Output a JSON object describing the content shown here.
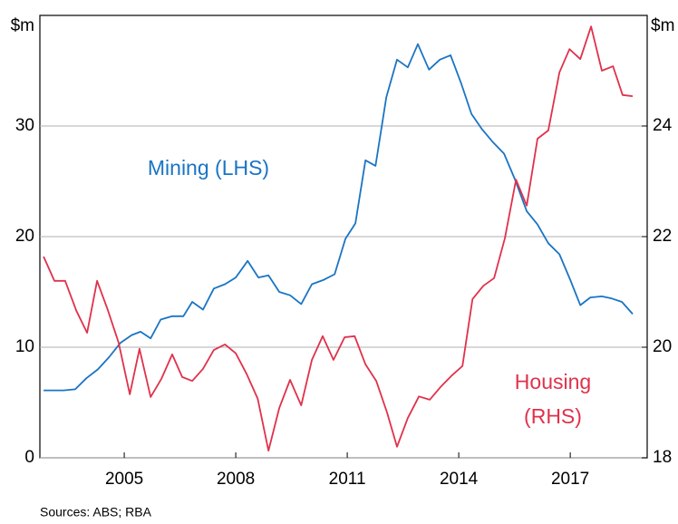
{
  "chart_data": {
    "type": "line",
    "y_label": "$m",
    "y2_label": "$m",
    "source": "Sources: ABS; RBA",
    "xlim": [
      2002.73,
      2019.07
    ],
    "xticks": [
      2005,
      2008,
      2011,
      2014,
      2017
    ],
    "ylim": [
      0,
      40
    ],
    "yticks": [
      0,
      10,
      20,
      30
    ],
    "y2lim": [
      18,
      26
    ],
    "y2ticks": [
      18,
      20,
      22,
      24
    ],
    "grid": true,
    "series": [
      {
        "name": "Mining (LHS)",
        "color": "#1a74c4",
        "axis": "y",
        "x": [
          2002.83,
          2003.37,
          2003.68,
          2003.98,
          2004.29,
          2004.59,
          2004.9,
          2005.2,
          2005.44,
          2005.71,
          2005.98,
          2006.29,
          2006.59,
          2006.83,
          2007.12,
          2007.41,
          2007.71,
          2008,
          2008.32,
          2008.61,
          2008.88,
          2009.17,
          2009.46,
          2009.76,
          2010.05,
          2010.37,
          2010.66,
          2010.95,
          2011.22,
          2011.49,
          2011.76,
          2012.05,
          2012.34,
          2012.63,
          2012.9,
          2013.2,
          2013.49,
          2013.78,
          2014.07,
          2014.34,
          2014.63,
          2014.93,
          2015.22,
          2015.51,
          2015.83,
          2016.12,
          2016.41,
          2016.71,
          2017,
          2017.27,
          2017.54,
          2017.85,
          2018.12,
          2018.39,
          2018.68
        ],
        "values": [
          6.1,
          6.1,
          6.2,
          7.2,
          8.0,
          9.1,
          10.4,
          11.1,
          11.4,
          10.8,
          12.5,
          12.8,
          12.8,
          14.1,
          13.4,
          15.3,
          15.7,
          16.3,
          17.8,
          16.3,
          16.5,
          15.0,
          14.7,
          13.9,
          15.7,
          16.1,
          16.6,
          19.8,
          21.2,
          26.9,
          26.4,
          32.6,
          36.0,
          35.3,
          37.4,
          35.1,
          36.0,
          36.4,
          33.8,
          31.1,
          29.7,
          28.5,
          27.5,
          25.2,
          22.3,
          21.1,
          19.4,
          18.4,
          16.1,
          13.8,
          14.5,
          14.6,
          14.4,
          14.1,
          13.0
        ]
      },
      {
        "name": "Housing (RHS)",
        "lines": [
          "Housing",
          "(RHS)"
        ],
        "color": "#e0314b",
        "axis": "y2",
        "x": [
          2002.83,
          2003.12,
          2003.41,
          2003.71,
          2004,
          2004.27,
          2004.56,
          2004.85,
          2005.15,
          2005.41,
          2005.71,
          2006,
          2006.29,
          2006.56,
          2006.83,
          2007.12,
          2007.41,
          2007.71,
          2008,
          2008.29,
          2008.59,
          2008.88,
          2009.17,
          2009.46,
          2009.76,
          2010.05,
          2010.34,
          2010.63,
          2010.93,
          2011.2,
          2011.49,
          2011.78,
          2012.07,
          2012.34,
          2012.63,
          2012.93,
          2013.22,
          2013.51,
          2013.8,
          2014.1,
          2014.37,
          2014.66,
          2014.95,
          2015.24,
          2015.54,
          2015.83,
          2016.12,
          2016.41,
          2016.71,
          2016.98,
          2017.27,
          2017.56,
          2017.85,
          2018.15,
          2018.41,
          2018.68
        ],
        "values": [
          21.64,
          21.2,
          21.2,
          20.66,
          20.26,
          21.2,
          20.67,
          20.08,
          19.15,
          19.97,
          19.1,
          19.43,
          19.87,
          19.46,
          19.39,
          19.61,
          19.95,
          20.05,
          19.89,
          19.52,
          19.07,
          18.13,
          18.9,
          19.41,
          18.95,
          19.77,
          20.2,
          19.77,
          20.18,
          20.2,
          19.69,
          19.39,
          18.82,
          18.2,
          18.72,
          19.11,
          19.05,
          19.28,
          19.48,
          19.66,
          20.87,
          21.11,
          21.25,
          21.97,
          23.03,
          22.56,
          23.77,
          23.92,
          24.97,
          25.39,
          25.21,
          25.8,
          25.0,
          25.08,
          24.56,
          24.54
        ]
      }
    ]
  }
}
